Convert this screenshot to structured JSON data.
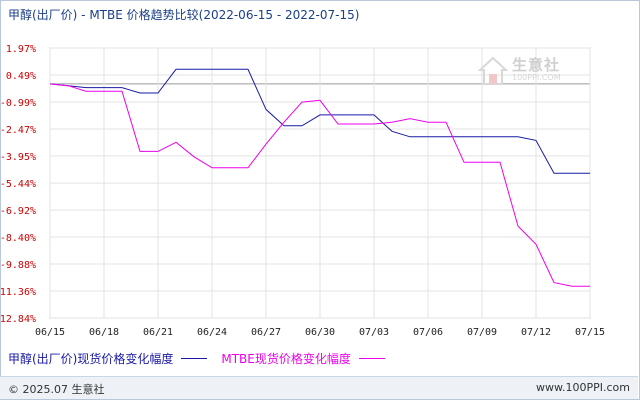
{
  "title": "甲醇(出厂价) - MTBE 价格趋势比较(2022-06-15 - 2022-07-15)",
  "watermark": {
    "brand": "生意社",
    "url": "100PPI.COM"
  },
  "footer": {
    "copyright": "© 2025.07 生意社",
    "site": "www.100PPI.com"
  },
  "chart_data": {
    "type": "line",
    "title": "甲醇(出厂价) - MTBE 价格趋势比较(2022-06-15 - 2022-07-15)",
    "x_tick_labels": [
      "06/15",
      "06/18",
      "06/21",
      "06/24",
      "06/27",
      "06/30",
      "07/03",
      "07/06",
      "07/09",
      "07/12",
      "07/15"
    ],
    "y_tick_labels": [
      "1.97%",
      "0.49%",
      "-0.99%",
      "-2.47%",
      "-3.95%",
      "-5.44%",
      "-6.92%",
      "-8.40%",
      "-9.88%",
      "-11.36%",
      "-12.84%"
    ],
    "ylim": [
      -12.84,
      1.97
    ],
    "xlim": [
      "06/15",
      "07/15"
    ],
    "grid": true,
    "legend_position": "bottom-left",
    "series": [
      {
        "name": "甲醇(出厂价)现货价格变化幅度",
        "color": "#1a1aa6",
        "points": [
          [
            "06/15",
            0.0
          ],
          [
            "06/17",
            -0.2
          ],
          [
            "06/19",
            -0.2
          ],
          [
            "06/20",
            -0.5
          ],
          [
            "06/21",
            -0.5
          ],
          [
            "06/22",
            0.8
          ],
          [
            "06/26",
            0.8
          ],
          [
            "06/27",
            -1.4
          ],
          [
            "06/28",
            -2.3
          ],
          [
            "06/29",
            -2.3
          ],
          [
            "06/30",
            -1.7
          ],
          [
            "07/03",
            -1.7
          ],
          [
            "07/04",
            -2.6
          ],
          [
            "07/05",
            -2.9
          ],
          [
            "07/11",
            -2.9
          ],
          [
            "07/12",
            -3.1
          ],
          [
            "07/13",
            -4.9
          ],
          [
            "07/15",
            -4.9
          ]
        ]
      },
      {
        "name": "MTBE现货价格变化幅度",
        "color": "#ee00ee",
        "points": [
          [
            "06/15",
            0.0
          ],
          [
            "06/16",
            -0.1
          ],
          [
            "06/17",
            -0.4
          ],
          [
            "06/19",
            -0.4
          ],
          [
            "06/20",
            -3.7
          ],
          [
            "06/21",
            -3.7
          ],
          [
            "06/22",
            -3.2
          ],
          [
            "06/23",
            -4.0
          ],
          [
            "06/24",
            -4.6
          ],
          [
            "06/26",
            -4.6
          ],
          [
            "06/27",
            -3.3
          ],
          [
            "06/28",
            -2.1
          ],
          [
            "06/29",
            -1.0
          ],
          [
            "06/30",
            -0.9
          ],
          [
            "07/01",
            -2.2
          ],
          [
            "07/03",
            -2.2
          ],
          [
            "07/04",
            -2.1
          ],
          [
            "07/05",
            -1.9
          ],
          [
            "07/06",
            -2.1
          ],
          [
            "07/07",
            -2.1
          ],
          [
            "07/08",
            -4.3
          ],
          [
            "07/10",
            -4.3
          ],
          [
            "07/11",
            -7.8
          ],
          [
            "07/12",
            -8.8
          ],
          [
            "07/13",
            -10.9
          ],
          [
            "07/14",
            -11.1
          ],
          [
            "07/15",
            -11.1
          ]
        ]
      }
    ]
  }
}
